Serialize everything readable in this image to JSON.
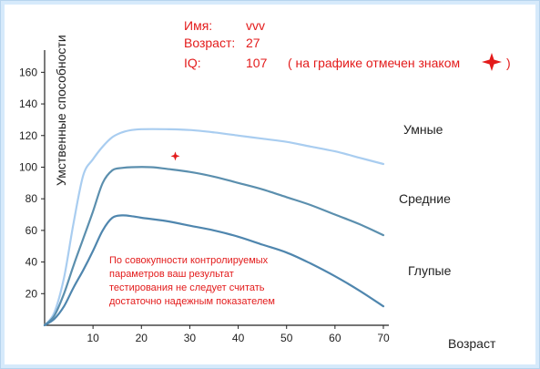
{
  "info": {
    "name_label": "Имя:",
    "name_value": "vvv",
    "age_label": "Возраст:",
    "age_value": "27",
    "iq_label": "IQ:",
    "iq_value": "107",
    "iq_note_open": "( на графике отмечен знаком",
    "iq_note_close": ")"
  },
  "note": {
    "lines": [
      "По совокупности контролируемых",
      "параметров ваш результат",
      "тестирования не следует считать",
      "достаточно надежным показателем"
    ]
  },
  "colors": {
    "smart": "#a9cdf0",
    "average": "#5b8fae",
    "dull": "#4f86ae",
    "marker": "#e31b1b",
    "text_red": "#e31b1b"
  },
  "chart_data": {
    "type": "line",
    "xlabel": "Возраст",
    "ylabel": "Умственные способности",
    "xlim": [
      0,
      70
    ],
    "ylim": [
      0,
      170
    ],
    "xticks": [
      10,
      20,
      30,
      40,
      50,
      60,
      70
    ],
    "yticks": [
      20,
      40,
      60,
      80,
      100,
      120,
      140,
      160
    ],
    "series": [
      {
        "name": "Умные",
        "color_key": "smart",
        "points": [
          [
            0,
            0
          ],
          [
            2,
            8
          ],
          [
            4,
            30
          ],
          [
            6,
            65
          ],
          [
            8,
            95
          ],
          [
            10,
            105
          ],
          [
            12,
            113
          ],
          [
            14,
            119
          ],
          [
            16,
            122
          ],
          [
            18,
            123.5
          ],
          [
            20,
            124
          ],
          [
            25,
            124
          ],
          [
            30,
            123.5
          ],
          [
            35,
            122
          ],
          [
            40,
            120
          ],
          [
            45,
            118
          ],
          [
            50,
            116
          ],
          [
            55,
            113
          ],
          [
            60,
            110
          ],
          [
            65,
            106
          ],
          [
            70,
            102
          ]
        ]
      },
      {
        "name": "Средние",
        "color_key": "average",
        "points": [
          [
            0,
            0
          ],
          [
            2,
            6
          ],
          [
            4,
            20
          ],
          [
            6,
            38
          ],
          [
            8,
            55
          ],
          [
            10,
            72
          ],
          [
            12,
            90
          ],
          [
            14,
            98
          ],
          [
            16,
            99.5
          ],
          [
            18,
            100
          ],
          [
            22,
            100
          ],
          [
            25,
            99
          ],
          [
            30,
            97
          ],
          [
            35,
            94
          ],
          [
            40,
            90
          ],
          [
            45,
            86
          ],
          [
            50,
            81
          ],
          [
            55,
            76
          ],
          [
            60,
            70
          ],
          [
            65,
            64
          ],
          [
            70,
            57
          ]
        ]
      },
      {
        "name": "Глупые",
        "color_key": "dull",
        "points": [
          [
            0,
            0
          ],
          [
            2,
            4
          ],
          [
            4,
            12
          ],
          [
            6,
            24
          ],
          [
            8,
            35
          ],
          [
            10,
            47
          ],
          [
            12,
            60
          ],
          [
            14,
            68
          ],
          [
            16,
            69.5
          ],
          [
            18,
            69
          ],
          [
            20,
            68
          ],
          [
            25,
            66
          ],
          [
            30,
            63
          ],
          [
            35,
            60
          ],
          [
            40,
            56
          ],
          [
            45,
            51
          ],
          [
            50,
            46
          ],
          [
            55,
            39
          ],
          [
            60,
            31
          ],
          [
            65,
            22
          ],
          [
            70,
            12
          ]
        ]
      }
    ],
    "marker": {
      "x": 27,
      "y": 107
    },
    "grid": false,
    "legend": "inline labels"
  }
}
